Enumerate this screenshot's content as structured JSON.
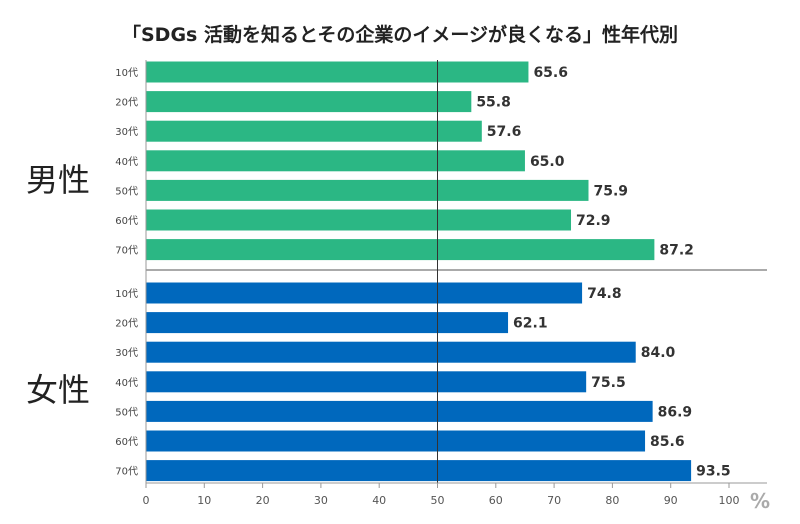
{
  "chart_data": {
    "type": "bar",
    "orientation": "horizontal",
    "title": "「SDGs 活動を知るとその企業のイメージが良くなる」性年代別",
    "unit": "%",
    "xlim": [
      0,
      100
    ],
    "xticks": [
      0,
      10,
      20,
      30,
      40,
      50,
      60,
      70,
      80,
      90,
      100
    ],
    "reference_line": 50,
    "groups": [
      {
        "name": "男性",
        "color": "#2bb784",
        "categories": [
          "10代",
          "20代",
          "30代",
          "40代",
          "50代",
          "60代",
          "70代"
        ],
        "values": [
          65.6,
          55.8,
          57.6,
          65.0,
          75.9,
          72.9,
          87.2
        ]
      },
      {
        "name": "女性",
        "color": "#0068bd",
        "categories": [
          "10代",
          "20代",
          "30代",
          "40代",
          "50代",
          "60代",
          "70代"
        ],
        "values": [
          74.8,
          62.1,
          84.0,
          75.5,
          86.9,
          85.6,
          93.5
        ]
      }
    ]
  }
}
